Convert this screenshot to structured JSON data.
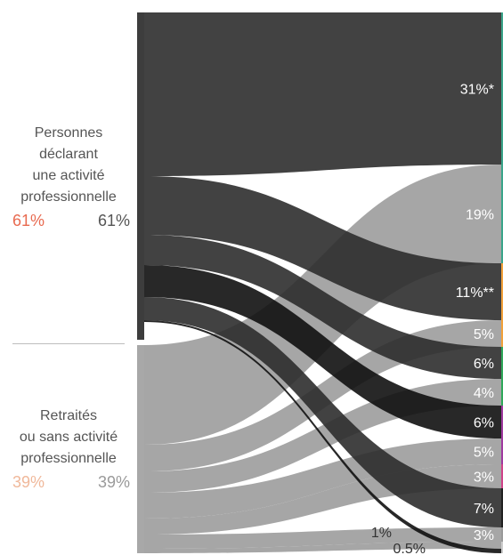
{
  "sources": [
    {
      "id": "actifs",
      "lines": [
        "Personnes",
        "déclarant",
        "une activité",
        "professionnelle"
      ],
      "pct_a": "61%",
      "pct_b": "61%",
      "color_a": "#e86a50",
      "color_b": "#555555",
      "node_color": "#3d3d3d"
    },
    {
      "id": "retraites",
      "lines": [
        "Retraités",
        "ou sans activité",
        "professionnelle"
      ],
      "pct_a": "39%",
      "pct_b": "39%",
      "color_a": "#f0b89a",
      "color_b": "#9a9a9a",
      "node_color": "#a8a8a8"
    }
  ],
  "targets": [
    {
      "label": "31%*",
      "label_color": "#ffffff",
      "accent": "#3aa58a"
    },
    {
      "label": "19%",
      "label_color": "#ffffff",
      "accent": "#3aa58a"
    },
    {
      "label": "11%**",
      "label_color": "#ffffff",
      "accent": "#f2a13a"
    },
    {
      "label": "5%",
      "label_color": "#ffffff",
      "accent": "#f2a13a"
    },
    {
      "label": "6%",
      "label_color": "#ffffff",
      "accent": "#2fa85a"
    },
    {
      "label": "4%",
      "label_color": "#ffffff",
      "accent": "#2fa85a"
    },
    {
      "label": "6%",
      "label_color": "#ffffff",
      "accent": "#a03aa0"
    },
    {
      "label": "5%",
      "label_color": "#ffffff",
      "accent": "#a03aa0"
    },
    {
      "label": "3%",
      "label_color": "#ffffff",
      "accent": "#d0428a"
    },
    {
      "label": "7%",
      "label_color": "#ffffff",
      "accent": "#222222"
    },
    {
      "label": "3%",
      "label_color": "#ffffff",
      "accent": "#9a9a9a"
    },
    {
      "label": "1%",
      "label_color": "#333333",
      "accent": "#cccccc"
    },
    {
      "label": "0.5%",
      "label_color": "#333333",
      "accent": "#cccccc"
    }
  ],
  "links": [
    {
      "source": 0,
      "target": 0,
      "value": 31
    },
    {
      "source": 0,
      "target": 2,
      "value": 11
    },
    {
      "source": 0,
      "target": 4,
      "value": 6
    },
    {
      "source": 0,
      "target": 6,
      "value": 6
    },
    {
      "source": 0,
      "target": 9,
      "value": 7
    },
    {
      "source": 0,
      "target": 12,
      "value": 0.5
    },
    {
      "source": 1,
      "target": 1,
      "value": 19
    },
    {
      "source": 1,
      "target": 3,
      "value": 5
    },
    {
      "source": 1,
      "target": 5,
      "value": 4
    },
    {
      "source": 1,
      "target": 7,
      "value": 5
    },
    {
      "source": 1,
      "target": 8,
      "value": 3
    },
    {
      "source": 1,
      "target": 10,
      "value": 3
    },
    {
      "source": 1,
      "target": 11,
      "value": 1
    }
  ]
}
